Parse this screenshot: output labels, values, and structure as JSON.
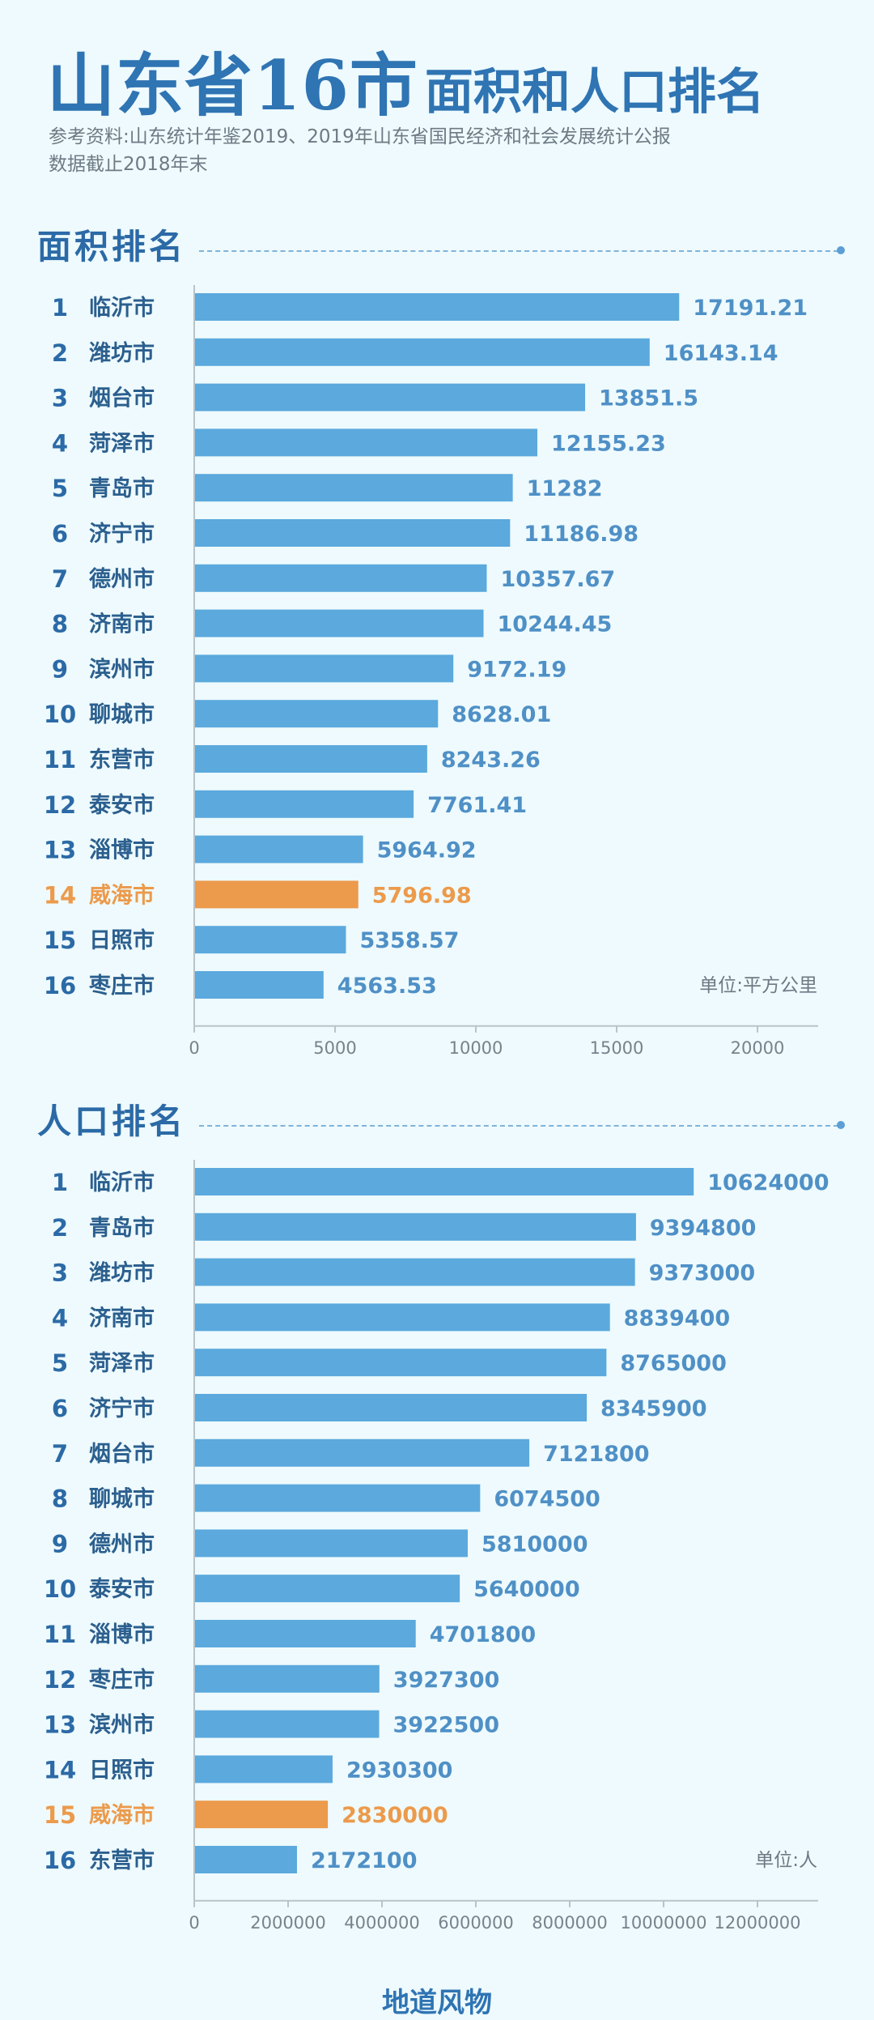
{
  "header": {
    "title_main": "山东省16市",
    "title_sub": "面积和人口排名",
    "source_line1": "参考资料:山东统计年鉴2019、2019年山东省国民经济和社会发展统计公报",
    "source_line2": "数据截止2018年末"
  },
  "colors": {
    "bar": "#5ba9dd",
    "highlight": "#ec9a4b",
    "text_blue": "#2b6aa6",
    "value_blue": "#4f90c6"
  },
  "chart_data": [
    {
      "type": "bar",
      "orientation": "horizontal",
      "title": "面积排名",
      "unit": "单位:平方公里",
      "highlight": "威海市",
      "ranks": [
        "1",
        "2",
        "3",
        "4",
        "5",
        "6",
        "7",
        "8",
        "9",
        "10",
        "11",
        "12",
        "13",
        "14",
        "15",
        "16"
      ],
      "categories": [
        "临沂市",
        "潍坊市",
        "烟台市",
        "菏泽市",
        "青岛市",
        "济宁市",
        "德州市",
        "济南市",
        "滨州市",
        "聊城市",
        "东营市",
        "泰安市",
        "淄博市",
        "威海市",
        "日照市",
        "枣庄市"
      ],
      "values": [
        17191.21,
        16143.14,
        13851.5,
        12155.23,
        11282,
        11186.98,
        10357.67,
        10244.45,
        9172.19,
        8628.01,
        8243.26,
        7761.41,
        5964.92,
        5796.98,
        5358.57,
        4563.53
      ],
      "value_labels": [
        "17191.21",
        "16143.14",
        "13851.5",
        "12155.23",
        "11282",
        "11186.98",
        "10357.67",
        "10244.45",
        "9172.19",
        "8628.01",
        "8243.26",
        "7761.41",
        "5964.92",
        "5796.98",
        "5358.57",
        "4563.53"
      ],
      "xlim": [
        0,
        20000
      ],
      "xticks": [
        "0",
        "5000",
        "10000",
        "15000",
        "20000"
      ]
    },
    {
      "type": "bar",
      "orientation": "horizontal",
      "title": "人口排名",
      "unit": "单位:人",
      "highlight": "威海市",
      "ranks": [
        "1",
        "2",
        "3",
        "4",
        "5",
        "6",
        "7",
        "8",
        "9",
        "10",
        "11",
        "12",
        "13",
        "14",
        "15",
        "16"
      ],
      "categories": [
        "临沂市",
        "青岛市",
        "潍坊市",
        "济南市",
        "菏泽市",
        "济宁市",
        "烟台市",
        "聊城市",
        "德州市",
        "泰安市",
        "淄博市",
        "枣庄市",
        "滨州市",
        "日照市",
        "威海市",
        "东营市"
      ],
      "values": [
        10624000,
        9394800,
        9373000,
        8839400,
        8765000,
        8345900,
        7121800,
        6074500,
        5810000,
        5640000,
        4701800,
        3927300,
        3922500,
        2930300,
        2830000,
        2172100
      ],
      "value_labels": [
        "10624000",
        "9394800",
        "9373000",
        "8839400",
        "8765000",
        "8345900",
        "7121800",
        "6074500",
        "5810000",
        "5640000",
        "4701800",
        "3927300",
        "3922500",
        "2930300",
        "2830000",
        "2172100"
      ],
      "xlim": [
        0,
        12000000
      ],
      "xticks": [
        "0",
        "2000000",
        "4000000",
        "6000000",
        "8000000",
        "10000000",
        "12000000"
      ]
    }
  ],
  "footer": {
    "brand": "地道风物"
  }
}
